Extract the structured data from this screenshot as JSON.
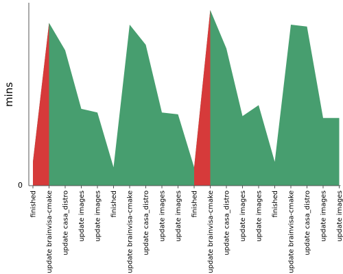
{
  "chart_data": {
    "type": "area",
    "ylabel": "mins",
    "y_tick_labels": [
      "0"
    ],
    "ylim": [
      0,
      100
    ],
    "categories": [
      "finished",
      "update brainvisa-cmake",
      "update casa_distro",
      "update images",
      "update images",
      "finished",
      "update brainvisa-cmake",
      "update casa_distro",
      "update images",
      "update images",
      "finished",
      "update brainvisa-cmake",
      "update casa_distro",
      "update images",
      "update images",
      "finished",
      "update brainvisa-cmake",
      "update casa_distro",
      "update images",
      "update images"
    ],
    "values": [
      13,
      89,
      74,
      42,
      40,
      10,
      88,
      77,
      40,
      39,
      10,
      96,
      75,
      38,
      44,
      13,
      88,
      87,
      37,
      37
    ],
    "series_colors": {
      "ok": "#479e6f",
      "failed": "#d63a3a"
    },
    "failed_segments": [
      [
        0,
        1
      ],
      [
        10,
        11
      ]
    ]
  }
}
